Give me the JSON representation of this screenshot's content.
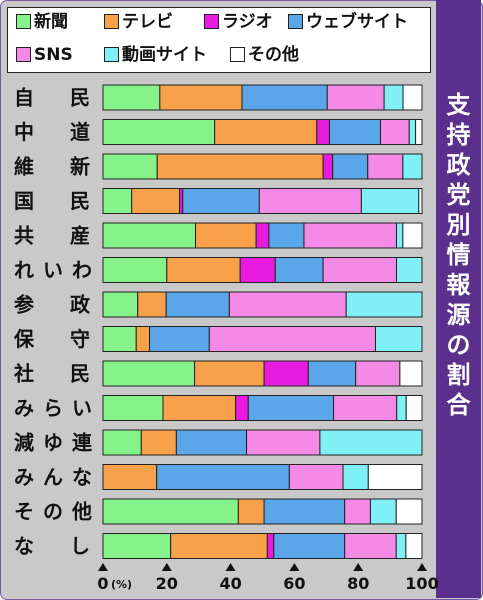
{
  "side_title": [
    "支",
    "持",
    "政",
    "党",
    "別",
    "情",
    "報",
    "源",
    "の",
    "割",
    "合"
  ],
  "chart_data": {
    "type": "bar",
    "orientation": "horizontal",
    "stacked": true,
    "title": "支持政党別情報源の割合",
    "categories": [
      "自民",
      "中道",
      "維新",
      "国民",
      "共産",
      "れいわ",
      "参政",
      "保守",
      "社民",
      "みらい",
      "減ゆ連",
      "みんな",
      "その他",
      "なし"
    ],
    "series": [
      {
        "name": "新聞",
        "color": "#85f28a",
        "values": [
          18,
          35,
          17,
          9,
          29,
          20,
          11,
          10,
          29,
          19,
          12,
          0,
          42,
          21
        ]
      },
      {
        "name": "テレビ",
        "color": "#f8a04a",
        "values": [
          26,
          32,
          52,
          15,
          19,
          23,
          9,
          4,
          22,
          23,
          11,
          17,
          8,
          30
        ]
      },
      {
        "name": "ラジオ",
        "color": "#e81ce0",
        "values": [
          0,
          4,
          3,
          1,
          4,
          11,
          0,
          0,
          14,
          4,
          0,
          0,
          0,
          2
        ]
      },
      {
        "name": "ウェブサイト",
        "color": "#5ba6e8",
        "values": [
          27,
          16,
          11,
          24,
          11,
          15,
          20,
          18,
          15,
          27,
          22,
          42,
          25,
          22
        ]
      },
      {
        "name": "SNS",
        "color": "#f58ae6",
        "values": [
          18,
          9,
          11,
          32,
          29,
          23,
          37,
          50,
          14,
          20,
          23,
          17,
          8,
          16
        ]
      },
      {
        "name": "動画サイト",
        "color": "#7ff0f5",
        "values": [
          6,
          2,
          6,
          18,
          2,
          8,
          24,
          14,
          0,
          3,
          32,
          8,
          8,
          3
        ]
      },
      {
        "name": "その他",
        "color": "#ffffff",
        "values": [
          6,
          2,
          0,
          1,
          6,
          0,
          0,
          0,
          7,
          5,
          0,
          17,
          8,
          5
        ]
      }
    ],
    "x": {
      "ticks": [
        0,
        20,
        40,
        60,
        80,
        100
      ],
      "unit": "(%)",
      "range": [
        0,
        100
      ]
    },
    "legend": "top",
    "grid": false
  }
}
